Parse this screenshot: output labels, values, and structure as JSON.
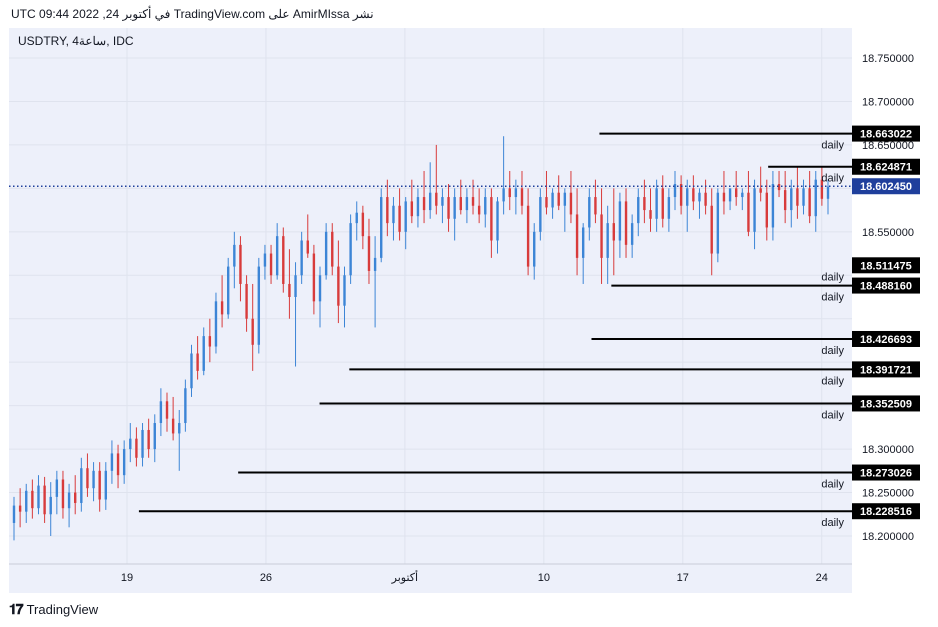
{
  "caption": "نشر AmirMIssa على TradingView.com في أكتوبر 24, 2022 09:44 UTC",
  "symbol_title": "USDTRY, 4ساعة, IDC",
  "footer": {
    "logo_text": "TradingView",
    "icon": "tradingview-logo-icon"
  },
  "colors": {
    "up": "#3c85d6",
    "down": "#d83b3b",
    "grid": "#dfe3ee",
    "level_line": "#000000",
    "label_bg": "#000000",
    "current_bg": "#1f3f9c",
    "box_fill": "#f7edac"
  },
  "chart_data": {
    "type": "candlestick",
    "title": "",
    "xlabel": "",
    "ylabel": "",
    "ylim": [
      18.17,
      18.79
    ],
    "y_ticks": [
      "18.750000",
      "18.700000",
      "18.650000",
      "18.550000",
      "18.300000",
      "18.250000",
      "18.200000"
    ],
    "x_ticks": [
      "19",
      "26",
      "أكتوبر",
      "10",
      "17",
      "24"
    ],
    "current_price": "18.602450",
    "levels": [
      {
        "price": "18.663022",
        "tag": "daily",
        "from_day": 23.8
      },
      {
        "price": "18.624871",
        "tag": "daily",
        "from_day": 32.3
      },
      {
        "price": "18.511475",
        "tag": "daily",
        "from_day": 37.6
      },
      {
        "price": "18.488160",
        "tag": "daily",
        "from_day": 24.4
      },
      {
        "price": "18.426693",
        "tag": "daily",
        "from_day": 23.4
      },
      {
        "price": "18.391721",
        "tag": "daily",
        "from_day": 11.2
      },
      {
        "price": "18.352509",
        "tag": "daily",
        "from_day": 9.7
      },
      {
        "price": "18.273026",
        "tag": "daily",
        "from_day": 5.6
      },
      {
        "price": "18.228516",
        "tag": "daily",
        "from_day": 0.6
      }
    ],
    "range_box": {
      "from_day": 37.6,
      "y_low": 18.511475,
      "y_high": 18.624871
    },
    "candles": [
      {
        "o": 18.215,
        "h": 18.245,
        "l": 18.195,
        "c": 18.235
      },
      {
        "o": 18.235,
        "h": 18.255,
        "l": 18.21,
        "c": 18.228
      },
      {
        "o": 18.228,
        "h": 18.26,
        "l": 18.215,
        "c": 18.252
      },
      {
        "o": 18.252,
        "h": 18.265,
        "l": 18.22,
        "c": 18.232
      },
      {
        "o": 18.232,
        "h": 18.27,
        "l": 18.225,
        "c": 18.258
      },
      {
        "o": 18.258,
        "h": 18.268,
        "l": 18.215,
        "c": 18.225
      },
      {
        "o": 18.225,
        "h": 18.262,
        "l": 18.2,
        "c": 18.245
      },
      {
        "o": 18.245,
        "h": 18.275,
        "l": 18.225,
        "c": 18.265
      },
      {
        "o": 18.265,
        "h": 18.275,
        "l": 18.22,
        "c": 18.232
      },
      {
        "o": 18.232,
        "h": 18.26,
        "l": 18.21,
        "c": 18.25
      },
      {
        "o": 18.25,
        "h": 18.27,
        "l": 18.225,
        "c": 18.238
      },
      {
        "o": 18.238,
        "h": 18.29,
        "l": 18.228,
        "c": 18.278
      },
      {
        "o": 18.278,
        "h": 18.295,
        "l": 18.245,
        "c": 18.255
      },
      {
        "o": 18.255,
        "h": 18.285,
        "l": 18.24,
        "c": 18.275
      },
      {
        "o": 18.275,
        "h": 18.285,
        "l": 18.228,
        "c": 18.242
      },
      {
        "o": 18.242,
        "h": 18.285,
        "l": 18.23,
        "c": 18.275
      },
      {
        "o": 18.275,
        "h": 18.31,
        "l": 18.26,
        "c": 18.295
      },
      {
        "o": 18.295,
        "h": 18.305,
        "l": 18.255,
        "c": 18.27
      },
      {
        "o": 18.27,
        "h": 18.31,
        "l": 18.26,
        "c": 18.3
      },
      {
        "o": 18.3,
        "h": 18.33,
        "l": 18.285,
        "c": 18.312
      },
      {
        "o": 18.312,
        "h": 18.325,
        "l": 18.28,
        "c": 18.29
      },
      {
        "o": 18.29,
        "h": 18.33,
        "l": 18.28,
        "c": 18.322
      },
      {
        "o": 18.322,
        "h": 18.335,
        "l": 18.29,
        "c": 18.3
      },
      {
        "o": 18.3,
        "h": 18.34,
        "l": 18.285,
        "c": 18.33
      },
      {
        "o": 18.33,
        "h": 18.37,
        "l": 18.315,
        "c": 18.355
      },
      {
        "o": 18.355,
        "h": 18.365,
        "l": 18.32,
        "c": 18.335
      },
      {
        "o": 18.335,
        "h": 18.36,
        "l": 18.31,
        "c": 18.318
      },
      {
        "o": 18.318,
        "h": 18.345,
        "l": 18.275,
        "c": 18.33
      },
      {
        "o": 18.33,
        "h": 18.38,
        "l": 18.32,
        "c": 18.37
      },
      {
        "o": 18.37,
        "h": 18.42,
        "l": 18.36,
        "c": 18.41
      },
      {
        "o": 18.41,
        "h": 18.43,
        "l": 18.38,
        "c": 18.39
      },
      {
        "o": 18.39,
        "h": 18.44,
        "l": 18.385,
        "c": 18.43
      },
      {
        "o": 18.43,
        "h": 18.45,
        "l": 18.4,
        "c": 18.418
      },
      {
        "o": 18.418,
        "h": 18.48,
        "l": 18.41,
        "c": 18.47
      },
      {
        "o": 18.47,
        "h": 18.5,
        "l": 18.44,
        "c": 18.455
      },
      {
        "o": 18.455,
        "h": 18.52,
        "l": 18.45,
        "c": 18.51
      },
      {
        "o": 18.51,
        "h": 18.55,
        "l": 18.485,
        "c": 18.535
      },
      {
        "o": 18.535,
        "h": 18.545,
        "l": 18.47,
        "c": 18.49
      },
      {
        "o": 18.49,
        "h": 18.5,
        "l": 18.435,
        "c": 18.45
      },
      {
        "o": 18.45,
        "h": 18.49,
        "l": 18.39,
        "c": 18.42
      },
      {
        "o": 18.42,
        "h": 18.52,
        "l": 18.41,
        "c": 18.51
      },
      {
        "o": 18.51,
        "h": 18.535,
        "l": 18.495,
        "c": 18.525
      },
      {
        "o": 18.525,
        "h": 18.535,
        "l": 18.49,
        "c": 18.5
      },
      {
        "o": 18.5,
        "h": 18.56,
        "l": 18.495,
        "c": 18.545
      },
      {
        "o": 18.545,
        "h": 18.555,
        "l": 18.48,
        "c": 18.49
      },
      {
        "o": 18.49,
        "h": 18.53,
        "l": 18.45,
        "c": 18.475
      },
      {
        "o": 18.475,
        "h": 18.515,
        "l": 18.395,
        "c": 18.5
      },
      {
        "o": 18.5,
        "h": 18.55,
        "l": 18.49,
        "c": 18.54
      },
      {
        "o": 18.54,
        "h": 18.57,
        "l": 18.52,
        "c": 18.525
      },
      {
        "o": 18.525,
        "h": 18.535,
        "l": 18.455,
        "c": 18.47
      },
      {
        "o": 18.47,
        "h": 18.51,
        "l": 18.44,
        "c": 18.5
      },
      {
        "o": 18.5,
        "h": 18.56,
        "l": 18.495,
        "c": 18.55
      },
      {
        "o": 18.55,
        "h": 18.56,
        "l": 18.5,
        "c": 18.51
      },
      {
        "o": 18.51,
        "h": 18.54,
        "l": 18.445,
        "c": 18.465
      },
      {
        "o": 18.465,
        "h": 18.51,
        "l": 18.44,
        "c": 18.5
      },
      {
        "o": 18.5,
        "h": 18.57,
        "l": 18.49,
        "c": 18.56
      },
      {
        "o": 18.56,
        "h": 18.585,
        "l": 18.54,
        "c": 18.572
      },
      {
        "o": 18.572,
        "h": 18.58,
        "l": 18.53,
        "c": 18.545
      },
      {
        "o": 18.545,
        "h": 18.565,
        "l": 18.49,
        "c": 18.505
      },
      {
        "o": 18.505,
        "h": 18.545,
        "l": 18.44,
        "c": 18.52
      },
      {
        "o": 18.52,
        "h": 18.6,
        "l": 18.515,
        "c": 18.59
      },
      {
        "o": 18.59,
        "h": 18.61,
        "l": 18.545,
        "c": 18.56
      },
      {
        "o": 18.56,
        "h": 18.59,
        "l": 18.54,
        "c": 18.58
      },
      {
        "o": 18.58,
        "h": 18.6,
        "l": 18.54,
        "c": 18.55
      },
      {
        "o": 18.55,
        "h": 18.59,
        "l": 18.53,
        "c": 18.585
      },
      {
        "o": 18.585,
        "h": 18.61,
        "l": 18.56,
        "c": 18.568
      },
      {
        "o": 18.568,
        "h": 18.6,
        "l": 18.555,
        "c": 18.59
      },
      {
        "o": 18.59,
        "h": 18.62,
        "l": 18.56,
        "c": 18.575
      },
      {
        "o": 18.575,
        "h": 18.63,
        "l": 18.565,
        "c": 18.595
      },
      {
        "o": 18.595,
        "h": 18.65,
        "l": 18.57,
        "c": 18.58
      },
      {
        "o": 18.58,
        "h": 18.6,
        "l": 18.56,
        "c": 18.59
      },
      {
        "o": 18.59,
        "h": 18.605,
        "l": 18.55,
        "c": 18.565
      },
      {
        "o": 18.565,
        "h": 18.6,
        "l": 18.54,
        "c": 18.59
      },
      {
        "o": 18.59,
        "h": 18.61,
        "l": 18.57,
        "c": 18.575
      },
      {
        "o": 18.575,
        "h": 18.6,
        "l": 18.56,
        "c": 18.59
      },
      {
        "o": 18.59,
        "h": 18.61,
        "l": 18.57,
        "c": 18.58
      },
      {
        "o": 18.58,
        "h": 18.6,
        "l": 18.56,
        "c": 18.57
      },
      {
        "o": 18.57,
        "h": 18.6,
        "l": 18.555,
        "c": 18.59
      },
      {
        "o": 18.59,
        "h": 18.6,
        "l": 18.52,
        "c": 18.54
      },
      {
        "o": 18.54,
        "h": 18.59,
        "l": 18.525,
        "c": 18.585
      },
      {
        "o": 18.585,
        "h": 18.66,
        "l": 18.57,
        "c": 18.6
      },
      {
        "o": 18.6,
        "h": 18.62,
        "l": 18.575,
        "c": 18.59
      },
      {
        "o": 18.59,
        "h": 18.61,
        "l": 18.57,
        "c": 18.6
      },
      {
        "o": 18.6,
        "h": 18.62,
        "l": 18.57,
        "c": 18.58
      },
      {
        "o": 18.58,
        "h": 18.6,
        "l": 18.5,
        "c": 18.51
      },
      {
        "o": 18.51,
        "h": 18.56,
        "l": 18.495,
        "c": 18.55
      },
      {
        "o": 18.55,
        "h": 18.6,
        "l": 18.54,
        "c": 18.59
      },
      {
        "o": 18.59,
        "h": 18.62,
        "l": 18.57,
        "c": 18.578
      },
      {
        "o": 18.578,
        "h": 18.6,
        "l": 18.565,
        "c": 18.595
      },
      {
        "o": 18.595,
        "h": 18.615,
        "l": 18.575,
        "c": 18.58
      },
      {
        "o": 18.58,
        "h": 18.6,
        "l": 18.55,
        "c": 18.595
      },
      {
        "o": 18.595,
        "h": 18.62,
        "l": 18.56,
        "c": 18.57
      },
      {
        "o": 18.57,
        "h": 18.6,
        "l": 18.5,
        "c": 18.52
      },
      {
        "o": 18.52,
        "h": 18.56,
        "l": 18.49,
        "c": 18.555
      },
      {
        "o": 18.555,
        "h": 18.6,
        "l": 18.54,
        "c": 18.59
      },
      {
        "o": 18.59,
        "h": 18.61,
        "l": 18.56,
        "c": 18.57
      },
      {
        "o": 18.57,
        "h": 18.6,
        "l": 18.49,
        "c": 18.52
      },
      {
        "o": 18.52,
        "h": 18.58,
        "l": 18.49,
        "c": 18.56
      },
      {
        "o": 18.56,
        "h": 18.6,
        "l": 18.5,
        "c": 18.54
      },
      {
        "o": 18.54,
        "h": 18.595,
        "l": 18.52,
        "c": 18.585
      },
      {
        "o": 18.585,
        "h": 18.6,
        "l": 18.52,
        "c": 18.535
      },
      {
        "o": 18.535,
        "h": 18.57,
        "l": 18.52,
        "c": 18.56
      },
      {
        "o": 18.56,
        "h": 18.6,
        "l": 18.545,
        "c": 18.59
      },
      {
        "o": 18.59,
        "h": 18.61,
        "l": 18.56,
        "c": 18.575
      },
      {
        "o": 18.575,
        "h": 18.6,
        "l": 18.55,
        "c": 18.565
      },
      {
        "o": 18.565,
        "h": 18.61,
        "l": 18.55,
        "c": 18.6
      },
      {
        "o": 18.6,
        "h": 18.615,
        "l": 18.555,
        "c": 18.565
      },
      {
        "o": 18.565,
        "h": 18.6,
        "l": 18.55,
        "c": 18.59
      },
      {
        "o": 18.59,
        "h": 18.62,
        "l": 18.575,
        "c": 18.605
      },
      {
        "o": 18.605,
        "h": 18.615,
        "l": 18.57,
        "c": 18.58
      },
      {
        "o": 18.58,
        "h": 18.61,
        "l": 18.55,
        "c": 18.6
      },
      {
        "o": 18.6,
        "h": 18.615,
        "l": 18.575,
        "c": 18.585
      },
      {
        "o": 18.585,
        "h": 18.6,
        "l": 18.565,
        "c": 18.595
      },
      {
        "o": 18.595,
        "h": 18.61,
        "l": 18.57,
        "c": 18.58
      },
      {
        "o": 18.58,
        "h": 18.6,
        "l": 18.5,
        "c": 18.525
      },
      {
        "o": 18.525,
        "h": 18.6,
        "l": 18.515,
        "c": 18.595
      },
      {
        "o": 18.595,
        "h": 18.62,
        "l": 18.57,
        "c": 18.585
      },
      {
        "o": 18.585,
        "h": 18.6,
        "l": 18.575,
        "c": 18.6
      },
      {
        "o": 18.6,
        "h": 18.62,
        "l": 18.58,
        "c": 18.59
      },
      {
        "o": 18.59,
        "h": 18.6,
        "l": 18.575,
        "c": 18.595
      },
      {
        "o": 18.595,
        "h": 18.62,
        "l": 18.545,
        "c": 18.55
      },
      {
        "o": 18.55,
        "h": 18.61,
        "l": 18.53,
        "c": 18.6
      },
      {
        "o": 18.6,
        "h": 18.625,
        "l": 18.585,
        "c": 18.595
      },
      {
        "o": 18.595,
        "h": 18.61,
        "l": 18.54,
        "c": 18.555
      },
      {
        "o": 18.555,
        "h": 18.62,
        "l": 18.54,
        "c": 18.605
      },
      {
        "o": 18.605,
        "h": 18.62,
        "l": 18.59,
        "c": 18.598
      },
      {
        "o": 18.598,
        "h": 18.62,
        "l": 18.56,
        "c": 18.575
      },
      {
        "o": 18.575,
        "h": 18.61,
        "l": 18.555,
        "c": 18.6
      },
      {
        "o": 18.6,
        "h": 18.625,
        "l": 18.565,
        "c": 18.58
      },
      {
        "o": 18.58,
        "h": 18.61,
        "l": 18.57,
        "c": 18.6
      },
      {
        "o": 18.6,
        "h": 18.62,
        "l": 18.56,
        "c": 18.568
      },
      {
        "o": 18.568,
        "h": 18.62,
        "l": 18.55,
        "c": 18.61
      },
      {
        "o": 18.61,
        "h": 18.625,
        "l": 18.58,
        "c": 18.588
      },
      {
        "o": 18.588,
        "h": 18.61,
        "l": 18.57,
        "c": 18.602
      }
    ]
  }
}
